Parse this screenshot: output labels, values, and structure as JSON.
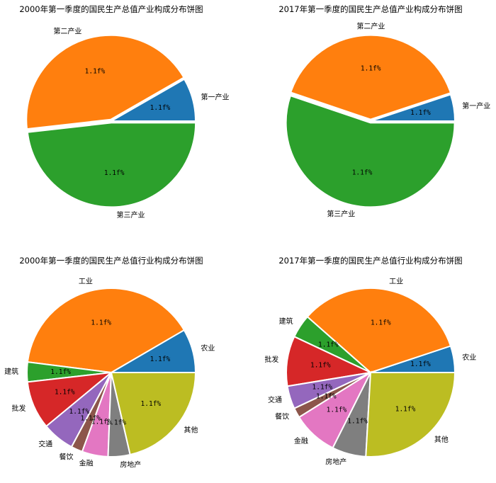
{
  "chart_data": [
    {
      "type": "pie",
      "title": "2000年第一季度的国民生产总值产业构成分布饼图",
      "start_angle_deg": 0,
      "direction": "counterclockwise",
      "explode": [
        0,
        0.02,
        0.02
      ],
      "slices": [
        {
          "label": "第一产业",
          "value": 8.3,
          "pct_label": "1.1f%",
          "color": "#1f77b4"
        },
        {
          "label": "第二产业",
          "value": 43.5,
          "pct_label": "1.1f%",
          "color": "#ff7f0e"
        },
        {
          "label": "第三产业",
          "value": 48.2,
          "pct_label": "1.1f%",
          "color": "#2ca02c"
        }
      ]
    },
    {
      "type": "pie",
      "title": "2017年第一季度的国民生产总值产业构成分布饼图",
      "start_angle_deg": 0,
      "direction": "counterclockwise",
      "explode": [
        0,
        0.02,
        0.02
      ],
      "slices": [
        {
          "label": "第一产业",
          "value": 5.1,
          "pct_label": "1.1f%",
          "color": "#1f77b4"
        },
        {
          "label": "第二产业",
          "value": 39.7,
          "pct_label": "1.1f%",
          "color": "#ff7f0e"
        },
        {
          "label": "第三产业",
          "value": 55.2,
          "pct_label": "1.1f%",
          "color": "#2ca02c"
        }
      ]
    },
    {
      "type": "pie",
      "title": "2000年第一季度的国民生产总值行业构成分布饼图",
      "start_angle_deg": 0,
      "direction": "counterclockwise",
      "slices": [
        {
          "label": "农业",
          "value": 8.4,
          "pct_label": "1.1f%",
          "color": "#1f77b4"
        },
        {
          "label": "工业",
          "value": 39.6,
          "pct_label": "1.1f%",
          "color": "#ff7f0e"
        },
        {
          "label": "建筑",
          "value": 3.8,
          "pct_label": "1.1f%",
          "color": "#2ca02c"
        },
        {
          "label": "批发",
          "value": 9.2,
          "pct_label": "1.1f%",
          "color": "#d62728"
        },
        {
          "label": "交通",
          "value": 6.2,
          "pct_label": "1.1f%",
          "color": "#9467bd"
        },
        {
          "label": "餐饮",
          "value": 2.2,
          "pct_label": "1.1f%",
          "color": "#8c564b"
        },
        {
          "label": "金融",
          "value": 5.0,
          "pct_label": "1.1f%",
          "color": "#e377c2"
        },
        {
          "label": "房地产",
          "value": 4.2,
          "pct_label": "1.1f%",
          "color": "#7f7f7f"
        },
        {
          "label": "其他",
          "value": 21.4,
          "pct_label": "1.1f%",
          "color": "#bcbd22"
        }
      ]
    },
    {
      "type": "pie",
      "title": "2017年第一季度的国民生产总值行业构成分布饼图",
      "start_angle_deg": 0,
      "direction": "counterclockwise",
      "slices": [
        {
          "label": "农业",
          "value": 5.1,
          "pct_label": "1.1f%",
          "color": "#1f77b4"
        },
        {
          "label": "工业",
          "value": 33.4,
          "pct_label": "1.1f%",
          "color": "#ff7f0e"
        },
        {
          "label": "建筑",
          "value": 4.5,
          "pct_label": "1.1f%",
          "color": "#2ca02c"
        },
        {
          "label": "批发",
          "value": 9.6,
          "pct_label": "1.1f%",
          "color": "#d62728"
        },
        {
          "label": "交通",
          "value": 4.4,
          "pct_label": "1.1f%",
          "color": "#9467bd"
        },
        {
          "label": "餐饮",
          "value": 1.9,
          "pct_label": "1.1f%",
          "color": "#8c564b"
        },
        {
          "label": "金融",
          "value": 8.7,
          "pct_label": "1.1f%",
          "color": "#e377c2"
        },
        {
          "label": "房地产",
          "value": 6.5,
          "pct_label": "1.1f%",
          "color": "#7f7f7f"
        },
        {
          "label": "其他",
          "value": 25.9,
          "pct_label": "1.1f%",
          "color": "#bcbd22"
        }
      ]
    }
  ]
}
